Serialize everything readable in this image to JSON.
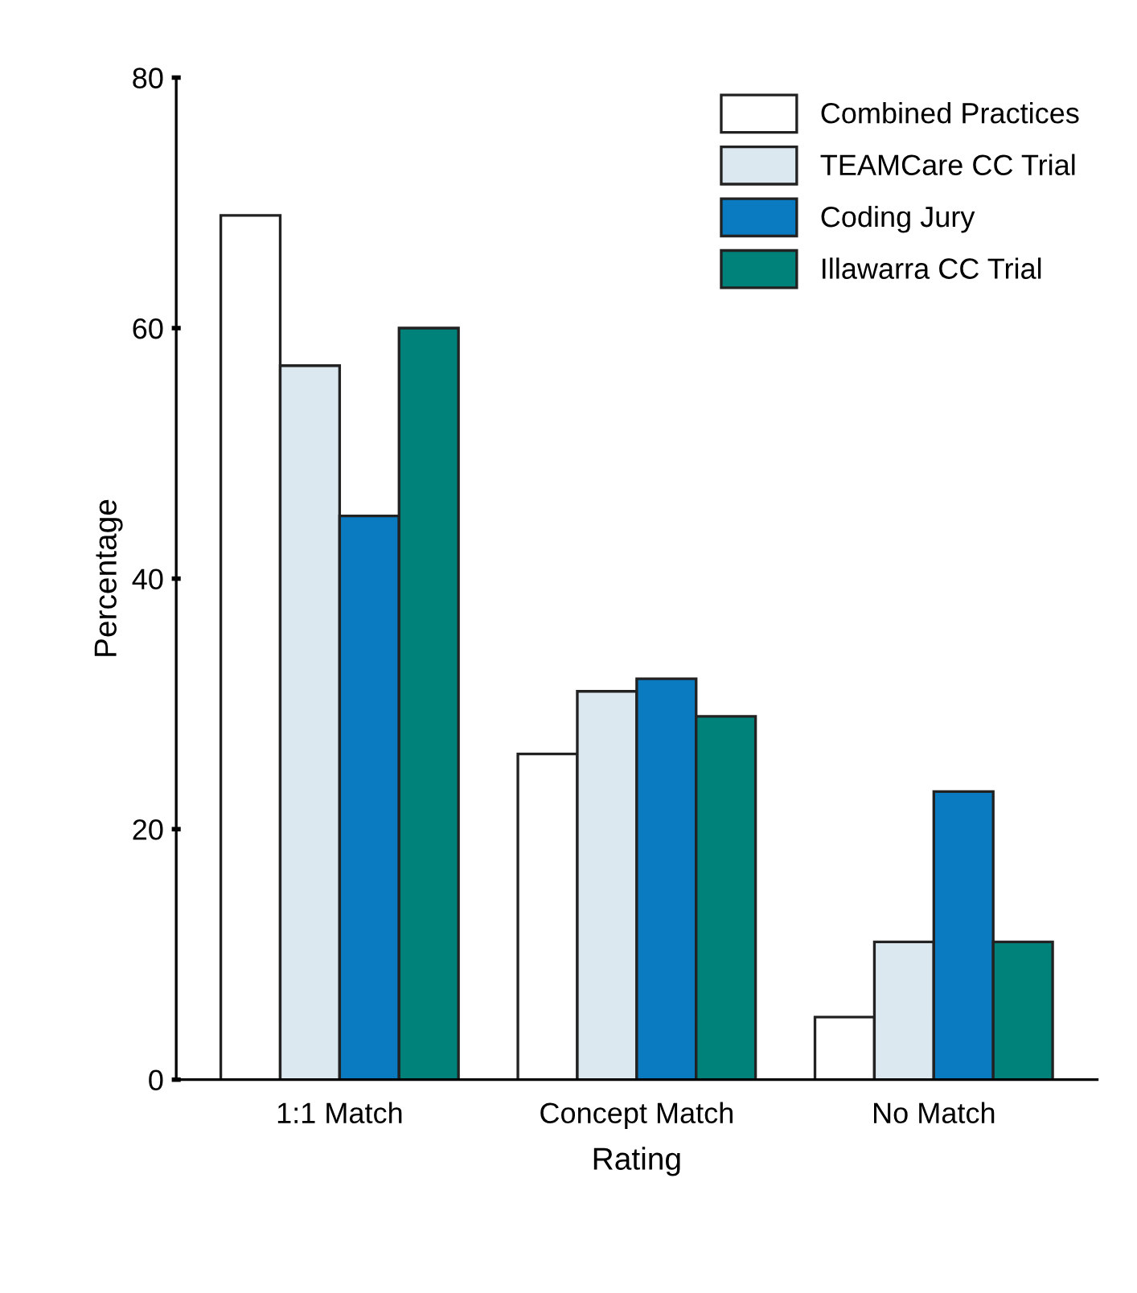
{
  "chart_data": {
    "type": "bar",
    "xlabel": "Rating",
    "ylabel": "Percentage",
    "categories": [
      "1:1 Match",
      "Concept Match",
      "No Match"
    ],
    "series": [
      {
        "name": "Combined Practices",
        "color": "#ffffff",
        "values": [
          69,
          26,
          5
        ]
      },
      {
        "name": "TEAMCare CC Trial",
        "color": "#dce8f0",
        "values": [
          57,
          31,
          11
        ]
      },
      {
        "name": "Coding Jury",
        "color": "#0a7bc1",
        "values": [
          45,
          32,
          23
        ]
      },
      {
        "name": "Illawarra CC Trial",
        "color": "#00827a",
        "values": [
          60,
          29,
          11
        ]
      }
    ],
    "ylim": [
      0,
      80
    ],
    "yticks": [
      0,
      20,
      40,
      60,
      80
    ],
    "grid": false,
    "legend": "top right"
  }
}
